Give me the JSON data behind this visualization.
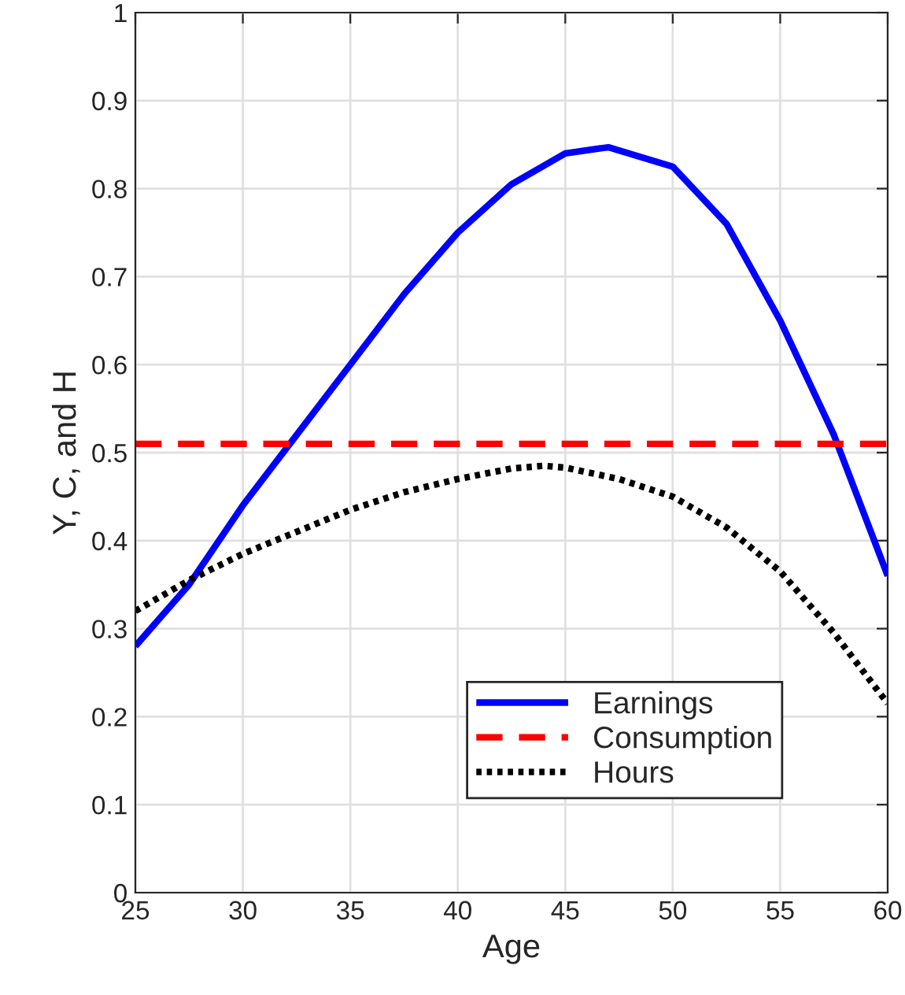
{
  "chart_data": {
    "type": "line",
    "xlabel": "Age",
    "ylabel": "Y, C, and H",
    "x": [
      25,
      27.5,
      30,
      32.5,
      35,
      37.5,
      40,
      42.5,
      45,
      47,
      50,
      52.5,
      55,
      57.5,
      60
    ],
    "series": [
      {
        "name": "Earnings",
        "color": "#0000ff",
        "line_style": "solid",
        "values": [
          0.28,
          0.35,
          0.44,
          0.52,
          0.6,
          0.68,
          0.75,
          0.805,
          0.84,
          0.847,
          0.825,
          0.76,
          0.65,
          0.52,
          0.36
        ]
      },
      {
        "name": "Consumption",
        "color": "#ff0000",
        "line_style": "dashed",
        "values": [
          0.51,
          0.51,
          0.51,
          0.51,
          0.51,
          0.51,
          0.51,
          0.51,
          0.51,
          0.51,
          0.51,
          0.51,
          0.51,
          0.51,
          0.51
        ]
      },
      {
        "name": "Hours",
        "color": "#000000",
        "line_style": "dotted",
        "x": [
          25,
          27.5,
          30,
          32.5,
          35,
          37.5,
          40,
          42.5,
          44,
          45,
          47.5,
          50,
          52.5,
          55,
          57.5,
          60
        ],
        "values": [
          0.32,
          0.355,
          0.385,
          0.41,
          0.435,
          0.455,
          0.47,
          0.482,
          0.485,
          0.483,
          0.47,
          0.45,
          0.415,
          0.365,
          0.295,
          0.215
        ]
      }
    ],
    "xlim": [
      25,
      60
    ],
    "xticks": [
      25,
      30,
      35,
      40,
      45,
      50,
      55,
      60
    ],
    "ylim": [
      0,
      1
    ],
    "yticks": [
      0,
      0.1,
      0.2,
      0.3,
      0.4,
      0.5,
      0.6,
      0.7,
      0.8,
      0.9,
      1
    ],
    "grid": true,
    "legend": "bottom right"
  }
}
